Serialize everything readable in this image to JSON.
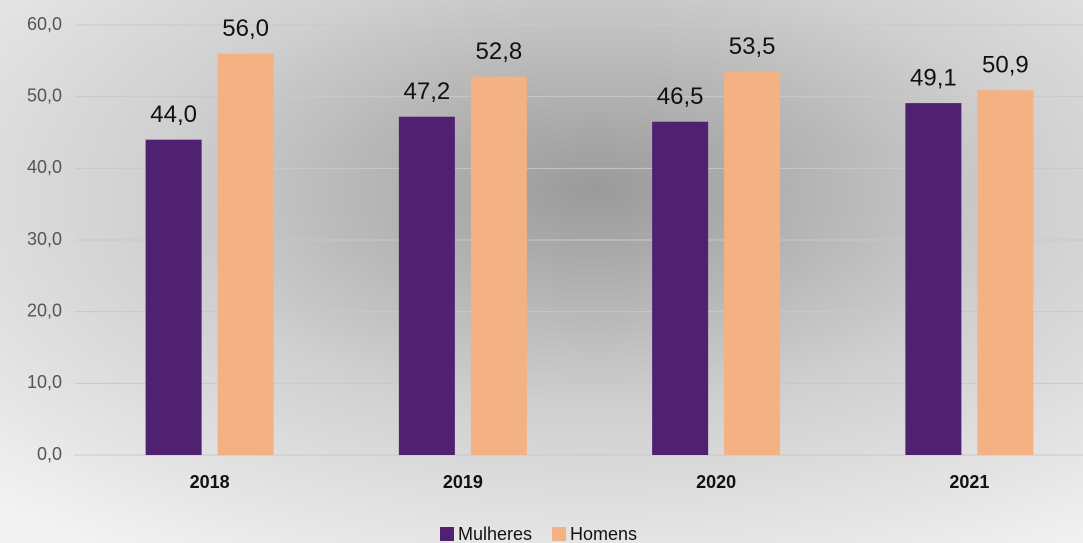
{
  "chart_data": {
    "type": "bar",
    "categories": [
      "2018",
      "2019",
      "2020",
      "2021"
    ],
    "series": [
      {
        "name": "Mulheres",
        "color": "#4f2170",
        "values": [
          44.0,
          47.2,
          46.5,
          49.1
        ],
        "value_labels": [
          "44,0",
          "47,2",
          "46,5",
          "49,1"
        ]
      },
      {
        "name": "Homens",
        "color": "#f4b183",
        "values": [
          56.0,
          52.8,
          53.5,
          50.9
        ],
        "value_labels": [
          "56,0",
          "52,8",
          "53,5",
          "50,9"
        ]
      }
    ],
    "ylim": [
      0,
      60
    ],
    "yticks": [
      {
        "value": 0,
        "label": "0,0"
      },
      {
        "value": 10,
        "label": "10,0"
      },
      {
        "value": 20,
        "label": "20,0"
      },
      {
        "value": 30,
        "label": "30,0"
      },
      {
        "value": 40,
        "label": "40,0"
      },
      {
        "value": 50,
        "label": "50,0"
      },
      {
        "value": 60,
        "label": "60,0"
      }
    ],
    "grid": true,
    "legend": "bottom"
  }
}
